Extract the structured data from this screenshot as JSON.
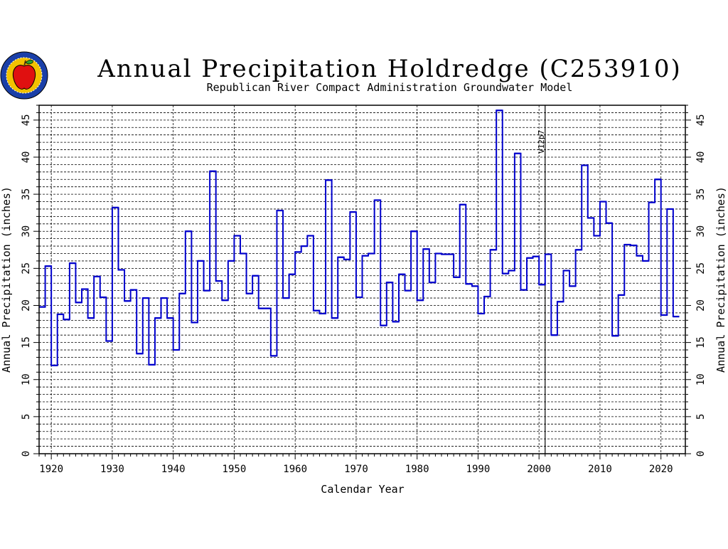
{
  "logo": {
    "name": "apple-logo-icon"
  },
  "chart_data": {
    "type": "line",
    "step": true,
    "title": "Annual Precipitation Holdredge (C253910)",
    "subtitle": "Republican River Compact Administration Groundwater Model",
    "xlabel": "Calendar Year",
    "ylabel": "Annual Precipitation (inches)",
    "xlim": [
      1918,
      2024
    ],
    "ylim": [
      0,
      47
    ],
    "x_ticks": [
      1920,
      1930,
      1940,
      1950,
      1960,
      1970,
      1980,
      1990,
      2000,
      2010,
      2020
    ],
    "y_ticks": [
      0,
      5,
      10,
      15,
      20,
      25,
      30,
      35,
      40,
      45
    ],
    "grid": true,
    "marker": {
      "x": 2001,
      "label": "V12p7"
    },
    "colors": {
      "series": "#0000cc",
      "grid": "#000000"
    },
    "series": [
      {
        "x": [
          1918,
          1919,
          1920,
          1921,
          1922,
          1923,
          1924,
          1925,
          1926,
          1927,
          1928,
          1929,
          1930,
          1931,
          1932,
          1933,
          1934,
          1935,
          1936,
          1937,
          1938,
          1939,
          1940,
          1941,
          1942,
          1943,
          1944,
          1945,
          1946,
          1947,
          1948,
          1949,
          1950,
          1951,
          1952,
          1953,
          1954,
          1955,
          1956,
          1957,
          1958,
          1959,
          1960,
          1961,
          1962,
          1963,
          1964,
          1965,
          1966,
          1967,
          1968,
          1969,
          1970,
          1971,
          1972,
          1973,
          1974,
          1975,
          1976,
          1977,
          1978,
          1979,
          1980,
          1981,
          1982,
          1983,
          1984,
          1985,
          1986,
          1987,
          1988,
          1989,
          1990,
          1991,
          1992,
          1993,
          1994,
          1995,
          1996,
          1997,
          1998,
          1999,
          2000,
          2001,
          2002,
          2003,
          2004,
          2005,
          2006,
          2007,
          2008,
          2009,
          2010,
          2011,
          2012,
          2013,
          2014,
          2015,
          2016,
          2017,
          2018,
          2019,
          2020,
          2021,
          2022
        ],
        "values": [
          19.8,
          25.3,
          11.9,
          18.8,
          18.1,
          25.7,
          20.4,
          22.2,
          18.3,
          23.9,
          21.1,
          15.2,
          33.2,
          24.8,
          20.6,
          22.1,
          13.5,
          21.0,
          12.0,
          18.3,
          21.0,
          18.3,
          14.0,
          21.6,
          30.0,
          17.7,
          26.0,
          22.0,
          38.1,
          23.3,
          20.7,
          26.0,
          29.4,
          27.0,
          21.6,
          24.0,
          19.6,
          19.6,
          13.2,
          32.8,
          21.0,
          24.2,
          27.2,
          28.0,
          29.4,
          19.3,
          18.9,
          36.9,
          18.3,
          26.5,
          26.2,
          32.6,
          21.1,
          26.7,
          27.0,
          34.2,
          17.3,
          23.1,
          17.8,
          24.2,
          22.0,
          30.0,
          20.7,
          27.6,
          23.1,
          27.0,
          26.9,
          26.9,
          23.8,
          33.6,
          22.9,
          22.6,
          18.9,
          21.2,
          27.5,
          46.3,
          24.3,
          24.7,
          40.5,
          22.1,
          26.4,
          26.6,
          22.8,
          26.9,
          16.0,
          20.5,
          24.7,
          22.6,
          27.5,
          38.9,
          31.8,
          29.4,
          34.0,
          31.1,
          15.9,
          21.4,
          28.2,
          28.1,
          26.7,
          26.0,
          33.9,
          37.0,
          18.7,
          33.0,
          18.5
        ]
      }
    ]
  }
}
